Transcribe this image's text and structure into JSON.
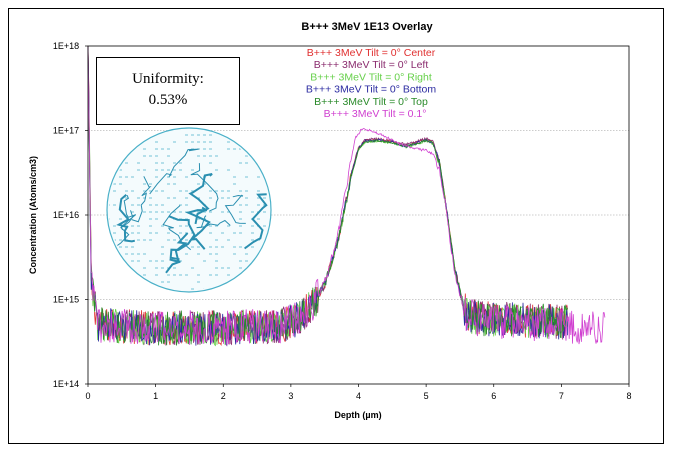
{
  "chart_data": {
    "type": "line",
    "title": "B+++ 3MeV 1E13 Overlay",
    "xlabel": "Depth (µm)",
    "ylabel": "Concentration (Atoms/cm3)",
    "xlim": [
      0,
      8
    ],
    "ylim": [
      100000000000000.0,
      1e+18
    ],
    "yscale": "log",
    "x_ticks": [
      "0",
      "1",
      "2",
      "3",
      "4",
      "5",
      "6",
      "7",
      "8"
    ],
    "y_ticks": [
      "1E+14",
      "1E+15",
      "1E+16",
      "1E+17",
      "1E+18"
    ],
    "grid": "horizontal dotted at decades",
    "series": [
      {
        "name": "B+++ 3MeV Tilt = 0° Center",
        "color": "#e03030",
        "x_end": 7.1,
        "points": [
          [
            0,
            1e+18
          ],
          [
            0.05,
            1500000000000000.0
          ],
          [
            0.15,
            500000000000000.0
          ],
          [
            1,
            460000000000000.0
          ],
          [
            2,
            460000000000000.0
          ],
          [
            2.9,
            500000000000000.0
          ],
          [
            3.1,
            600000000000000.0
          ],
          [
            3.3,
            800000000000000.0
          ],
          [
            3.5,
            1500000000000000.0
          ],
          [
            3.7,
            5000000000000000.0
          ],
          [
            3.9,
            3.2e+16
          ],
          [
            4.0,
            6.2e+16
          ],
          [
            4.1,
            7.6e+16
          ],
          [
            4.3,
            7.8e+16
          ],
          [
            4.5,
            7.4e+16
          ],
          [
            4.7,
            6.6e+16
          ],
          [
            4.9,
            7.4e+16
          ],
          [
            5.0,
            7.8e+16
          ],
          [
            5.1,
            7.3e+16
          ],
          [
            5.2,
            4e+16
          ],
          [
            5.3,
            1.2e+16
          ],
          [
            5.4,
            3000000000000000.0
          ],
          [
            5.5,
            1200000000000000.0
          ],
          [
            5.6,
            650000000000000.0
          ],
          [
            5.8,
            600000000000000.0
          ],
          [
            7.1,
            540000000000000.0
          ]
        ]
      },
      {
        "name": "B+++ 3MeV Tilt = 0° Left",
        "color": "#8a2c6e",
        "x_end": 7.1,
        "points": [
          [
            0,
            1e+18
          ],
          [
            0.05,
            1500000000000000.0
          ],
          [
            0.15,
            500000000000000.0
          ],
          [
            1,
            460000000000000.0
          ],
          [
            2,
            460000000000000.0
          ],
          [
            2.9,
            500000000000000.0
          ],
          [
            3.1,
            600000000000000.0
          ],
          [
            3.3,
            800000000000000.0
          ],
          [
            3.5,
            1500000000000000.0
          ],
          [
            3.7,
            5000000000000000.0
          ],
          [
            3.9,
            3.3e+16
          ],
          [
            4.0,
            6.3e+16
          ],
          [
            4.1,
            7.8e+16
          ],
          [
            4.3,
            8e+16
          ],
          [
            4.5,
            7.6e+16
          ],
          [
            4.7,
            6.8e+16
          ],
          [
            4.9,
            7.6e+16
          ],
          [
            5.0,
            8e+16
          ],
          [
            5.1,
            7.5e+16
          ],
          [
            5.2,
            4.1e+16
          ],
          [
            5.3,
            1.2e+16
          ],
          [
            5.4,
            3000000000000000.0
          ],
          [
            5.5,
            1200000000000000.0
          ],
          [
            5.6,
            650000000000000.0
          ],
          [
            5.8,
            600000000000000.0
          ],
          [
            7.1,
            540000000000000.0
          ]
        ]
      },
      {
        "name": "B+++ 3MeV Tilt = 0° Right",
        "color": "#66d04a",
        "x_end": 7.1,
        "points": [
          [
            0,
            1e+18
          ],
          [
            0.05,
            1500000000000000.0
          ],
          [
            0.15,
            500000000000000.0
          ],
          [
            1,
            460000000000000.0
          ],
          [
            2,
            460000000000000.0
          ],
          [
            2.9,
            500000000000000.0
          ],
          [
            3.1,
            600000000000000.0
          ],
          [
            3.3,
            800000000000000.0
          ],
          [
            3.5,
            1500000000000000.0
          ],
          [
            3.7,
            5000000000000000.0
          ],
          [
            3.9,
            3e+16
          ],
          [
            4.0,
            6e+16
          ],
          [
            4.1,
            7.3e+16
          ],
          [
            4.3,
            7.5e+16
          ],
          [
            4.5,
            7.1e+16
          ],
          [
            4.7,
            6.4e+16
          ],
          [
            4.9,
            7.1e+16
          ],
          [
            5.0,
            7.5e+16
          ],
          [
            5.1,
            7e+16
          ],
          [
            5.2,
            3.9e+16
          ],
          [
            5.3,
            1.2e+16
          ],
          [
            5.4,
            3000000000000000.0
          ],
          [
            5.5,
            1200000000000000.0
          ],
          [
            5.6,
            650000000000000.0
          ],
          [
            5.8,
            600000000000000.0
          ],
          [
            7.1,
            540000000000000.0
          ]
        ]
      },
      {
        "name": "B+++ 3MeV Tilt = 0° Bottom",
        "color": "#2a2aa0",
        "x_end": 7.1,
        "points": [
          [
            0,
            1e+18
          ],
          [
            0.05,
            1500000000000000.0
          ],
          [
            0.15,
            500000000000000.0
          ],
          [
            1,
            460000000000000.0
          ],
          [
            2,
            460000000000000.0
          ],
          [
            2.9,
            500000000000000.0
          ],
          [
            3.1,
            600000000000000.0
          ],
          [
            3.3,
            800000000000000.0
          ],
          [
            3.5,
            1500000000000000.0
          ],
          [
            3.7,
            5000000000000000.0
          ],
          [
            3.9,
            3.1e+16
          ],
          [
            4.0,
            6.1e+16
          ],
          [
            4.1,
            7.5e+16
          ],
          [
            4.3,
            7.7e+16
          ],
          [
            4.5,
            7.3e+16
          ],
          [
            4.7,
            6.5e+16
          ],
          [
            4.9,
            7.3e+16
          ],
          [
            5.0,
            7.7e+16
          ],
          [
            5.1,
            7.2e+16
          ],
          [
            5.2,
            4e+16
          ],
          [
            5.3,
            1.2e+16
          ],
          [
            5.4,
            3000000000000000.0
          ],
          [
            5.5,
            1200000000000000.0
          ],
          [
            5.6,
            650000000000000.0
          ],
          [
            5.8,
            600000000000000.0
          ],
          [
            7.1,
            540000000000000.0
          ]
        ]
      },
      {
        "name": "B+++ 3MeV Tilt = 0° Top",
        "color": "#2a8a2a",
        "x_end": 7.1,
        "points": [
          [
            0,
            1e+18
          ],
          [
            0.05,
            1500000000000000.0
          ],
          [
            0.15,
            500000000000000.0
          ],
          [
            1,
            460000000000000.0
          ],
          [
            2,
            460000000000000.0
          ],
          [
            2.9,
            500000000000000.0
          ],
          [
            3.1,
            600000000000000.0
          ],
          [
            3.3,
            800000000000000.0
          ],
          [
            3.5,
            1500000000000000.0
          ],
          [
            3.7,
            5000000000000000.0
          ],
          [
            3.9,
            3e+16
          ],
          [
            4.0,
            6e+16
          ],
          [
            4.1,
            7.4e+16
          ],
          [
            4.3,
            7.6e+16
          ],
          [
            4.5,
            7.2e+16
          ],
          [
            4.7,
            6.5e+16
          ],
          [
            4.9,
            7.2e+16
          ],
          [
            5.0,
            7.6e+16
          ],
          [
            5.1,
            7.1e+16
          ],
          [
            5.2,
            3.9e+16
          ],
          [
            5.3,
            1.2e+16
          ],
          [
            5.4,
            3000000000000000.0
          ],
          [
            5.5,
            1200000000000000.0
          ],
          [
            5.6,
            650000000000000.0
          ],
          [
            5.8,
            600000000000000.0
          ],
          [
            7.1,
            540000000000000.0
          ]
        ]
      },
      {
        "name": "B+++ 3MeV Tilt = 0.1°",
        "color": "#d040d0",
        "x_end": 7.65,
        "points": [
          [
            0,
            1e+18
          ],
          [
            0.05,
            1500000000000000.0
          ],
          [
            0.15,
            500000000000000.0
          ],
          [
            1,
            460000000000000.0
          ],
          [
            2,
            460000000000000.0
          ],
          [
            2.9,
            500000000000000.0
          ],
          [
            3.1,
            600000000000000.0
          ],
          [
            3.3,
            800000000000000.0
          ],
          [
            3.5,
            1600000000000000.0
          ],
          [
            3.7,
            6000000000000000.0
          ],
          [
            3.85,
            3e+16
          ],
          [
            3.95,
            8e+16
          ],
          [
            4.05,
            1.05e+17
          ],
          [
            4.2,
            9.8e+16
          ],
          [
            4.4,
            8.5e+16
          ],
          [
            4.6,
            7e+16
          ],
          [
            4.8,
            6.2e+16
          ],
          [
            5.0,
            5.8e+16
          ],
          [
            5.1,
            5.3e+16
          ],
          [
            5.2,
            3.5e+16
          ],
          [
            5.3,
            1.1e+16
          ],
          [
            5.4,
            2800000000000000.0
          ],
          [
            5.5,
            1100000000000000.0
          ],
          [
            5.6,
            630000000000000.0
          ],
          [
            5.8,
            580000000000000.0
          ],
          [
            6.5,
            500000000000000.0
          ],
          [
            7.65,
            460000000000000.0
          ]
        ]
      }
    ]
  },
  "annotation": {
    "line1": "Uniformity:",
    "line2": "0.53%"
  }
}
